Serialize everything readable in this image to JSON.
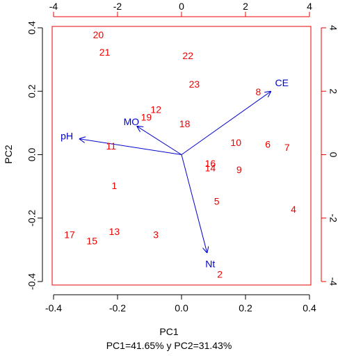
{
  "chart_data": {
    "type": "scatter",
    "title": "",
    "xlabel": "PC1",
    "ylabel": "PC2",
    "subtitle": "PC1=41.65% y PC2=31.43%",
    "xlim": [
      -0.4,
      0.4
    ],
    "ylim": [
      -0.4,
      0.4
    ],
    "x_ticks": [
      "-0.4",
      "-0.2",
      "0.0",
      "0.2",
      "0.4"
    ],
    "y_ticks": [
      "-0.4",
      "-0.2",
      "0.0",
      "0.2",
      "0.4"
    ],
    "top_axis_range": [
      -4,
      4
    ],
    "top_ticks": [
      "-4",
      "-2",
      "0",
      "2",
      "4"
    ],
    "right_axis_range": [
      -4,
      4
    ],
    "right_ticks": [
      "-4",
      "-2",
      "0",
      "2",
      "4"
    ],
    "grid": false,
    "scores": [
      {
        "label": "1",
        "x": -0.21,
        "y": -0.1
      },
      {
        "label": "2",
        "x": 0.12,
        "y": -0.38
      },
      {
        "label": "3",
        "x": -0.08,
        "y": -0.255
      },
      {
        "label": "4",
        "x": 0.35,
        "y": -0.175
      },
      {
        "label": "5",
        "x": 0.11,
        "y": -0.15
      },
      {
        "label": "6",
        "x": 0.27,
        "y": 0.03
      },
      {
        "label": "7",
        "x": 0.33,
        "y": 0.02
      },
      {
        "label": "8",
        "x": 0.24,
        "y": 0.195
      },
      {
        "label": "9",
        "x": 0.18,
        "y": -0.05
      },
      {
        "label": "10",
        "x": 0.17,
        "y": 0.035
      },
      {
        "label": "11",
        "x": -0.22,
        "y": 0.025
      },
      {
        "label": "12",
        "x": -0.08,
        "y": 0.14
      },
      {
        "label": "13",
        "x": -0.21,
        "y": -0.245
      },
      {
        "label": "14",
        "x": 0.09,
        "y": -0.045
      },
      {
        "label": "15",
        "x": -0.28,
        "y": -0.275
      },
      {
        "label": "16",
        "x": 0.09,
        "y": -0.03
      },
      {
        "label": "17",
        "x": -0.35,
        "y": -0.255
      },
      {
        "label": "18",
        "x": 0.01,
        "y": 0.095
      },
      {
        "label": "19",
        "x": -0.11,
        "y": 0.115
      },
      {
        "label": "20",
        "x": -0.26,
        "y": 0.375
      },
      {
        "label": "21",
        "x": -0.24,
        "y": 0.32
      },
      {
        "label": "22",
        "x": 0.02,
        "y": 0.31
      },
      {
        "label": "23",
        "x": 0.04,
        "y": 0.22
      }
    ],
    "loadings": [
      {
        "label": "CE",
        "x": 0.28,
        "y": 0.2
      },
      {
        "label": "MO",
        "x": -0.14,
        "y": 0.09
      },
      {
        "label": "pH",
        "x": -0.32,
        "y": 0.05
      },
      {
        "label": "Nt",
        "x": 0.08,
        "y": -0.31
      }
    ],
    "colors": {
      "scores": "#ee0000",
      "loadings": "#0000cc",
      "frame": "#ee0000",
      "axes": "#000000"
    }
  }
}
